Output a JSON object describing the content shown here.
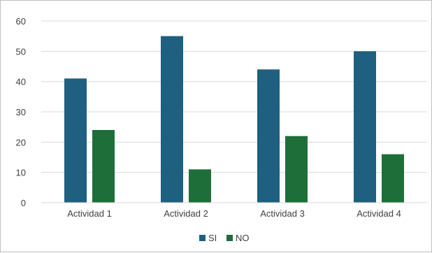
{
  "chart_data": {
    "type": "bar",
    "categories": [
      "Actividad 1",
      "Actividad 2",
      "Actividad 3",
      "Actividad 4"
    ],
    "series": [
      {
        "name": "SI",
        "values": [
          41,
          55,
          44,
          50
        ],
        "color": "#1f5f7f"
      },
      {
        "name": "NO",
        "values": [
          24,
          11,
          22,
          16
        ],
        "color": "#1e6e3a"
      }
    ],
    "yticks": [
      0,
      10,
      20,
      30,
      40,
      50,
      60
    ],
    "ylim": [
      0,
      60
    ],
    "grid": true,
    "legend_position": "bottom",
    "title": "",
    "xlabel": "",
    "ylabel": ""
  }
}
